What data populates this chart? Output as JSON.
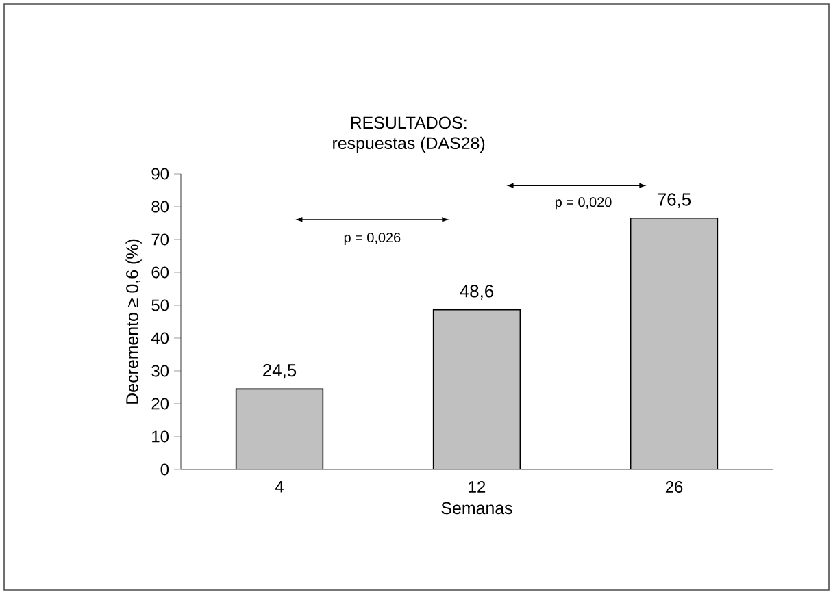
{
  "chart_data": {
    "type": "bar",
    "title": "RESULTADOS:",
    "subtitle": "respuestas (DAS28)",
    "xlabel": "Semanas",
    "ylabel": "Decremento ≥ 0,6 (%)",
    "categories": [
      "4",
      "12",
      "26"
    ],
    "values": [
      24.5,
      48.6,
      76.5
    ],
    "value_labels": [
      "24,5",
      "48,6",
      "76,5"
    ],
    "color": "#c0c0c0",
    "ylim": [
      0,
      90
    ],
    "yticks": [
      0,
      10,
      20,
      30,
      40,
      50,
      60,
      70,
      80,
      90
    ],
    "grid": false,
    "annotations": [
      "p = 0,026",
      "p = 0,020"
    ]
  }
}
